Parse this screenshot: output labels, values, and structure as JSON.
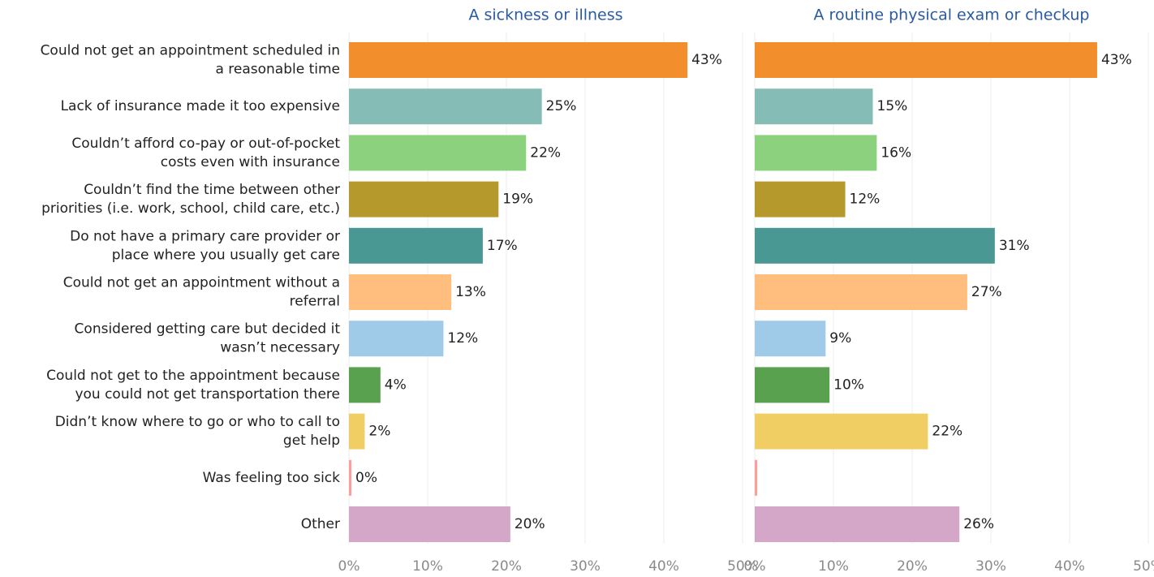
{
  "chart_data": {
    "type": "bar",
    "orientation": "horizontal",
    "categories": [
      [
        "Could not get an appointment scheduled in",
        "a reasonable time"
      ],
      [
        "Lack of insurance made it too expensive"
      ],
      [
        "Couldn’t afford co-pay or out-of-pocket",
        "costs even with insurance"
      ],
      [
        "Couldn’t find the time between other",
        "priorities (i.e. work, school, child care, etc.)"
      ],
      [
        "Do not have a primary care provider or",
        "place where you usually get care"
      ],
      [
        "Could not get an appointment without a",
        "referral"
      ],
      [
        "Considered getting care but decided it",
        "wasn’t necessary"
      ],
      [
        "Could not get to the appointment because",
        "you could not get transportation there"
      ],
      [
        "Didn’t know where to go or who to call to",
        "get help"
      ],
      [
        "Was feeling too sick"
      ],
      [
        "Other"
      ]
    ],
    "colors": [
      "#f28e2b",
      "#86bcb6",
      "#8cd17d",
      "#b6992d",
      "#499894",
      "#ffbe7d",
      "#a0cbe8",
      "#59a14f",
      "#f1ce63",
      "#ff9d9a",
      "#d4a6c8"
    ],
    "xlim": [
      0,
      50
    ],
    "xticks": [
      "0%",
      "10%",
      "20%",
      "30%",
      "40%",
      "50%"
    ],
    "grid": true,
    "panels": [
      {
        "title": "A sickness or illness",
        "values": [
          43,
          24.5,
          22.5,
          19,
          17,
          13,
          12,
          4,
          2,
          0.3,
          20.5
        ],
        "labels": [
          "43%",
          "25%",
          "22%",
          "19%",
          "17%",
          "13%",
          "12%",
          "4%",
          "2%",
          "0%",
          "20%"
        ]
      },
      {
        "title": "A routine physical exam or checkup",
        "values": [
          43.5,
          15,
          15.5,
          11.5,
          30.5,
          27,
          9,
          9.5,
          22,
          0.2,
          26
        ],
        "labels": [
          "43%",
          "15%",
          "16%",
          "12%",
          "31%",
          "27%",
          "9%",
          "10%",
          "22%",
          "",
          "26%"
        ]
      }
    ]
  }
}
